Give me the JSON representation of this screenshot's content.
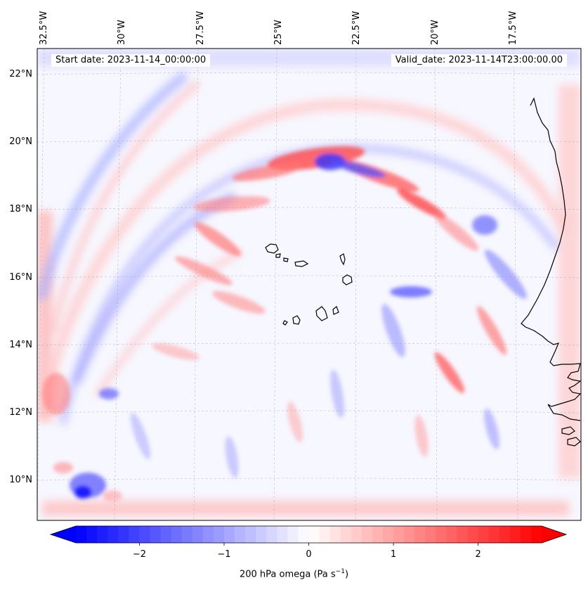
{
  "map": {
    "start_date": "Start date: 2023-11-14_00:00:00",
    "valid_date": "Valid_date: 2023-11-14T23:00:00.00",
    "lon_labels": [
      {
        "text": "32.5°W",
        "lon": -32.5
      },
      {
        "text": "30°W",
        "lon": -30
      },
      {
        "text": "27.5°W",
        "lon": -27.5
      },
      {
        "text": "25°W",
        "lon": -25
      },
      {
        "text": "22.5°W",
        "lon": -22.5
      },
      {
        "text": "20°W",
        "lon": -20
      },
      {
        "text": "17.5°W",
        "lon": -17.5
      }
    ],
    "lat_labels": [
      {
        "text": "22°N",
        "lat": 22
      },
      {
        "text": "20°N",
        "lat": 20
      },
      {
        "text": "18°N",
        "lat": 18
      },
      {
        "text": "16°N",
        "lat": 16
      },
      {
        "text": "14°N",
        "lat": 14
      },
      {
        "text": "12°N",
        "lat": 12
      },
      {
        "text": "10°N",
        "lat": 10
      }
    ],
    "colorbar": {
      "label": "200 hPa omega (Pa s",
      "label_exp": "−1",
      "label_end": ")",
      "range": [
        -2.75,
        2.75
      ],
      "ticks": [
        {
          "value": -2,
          "text": "−2"
        },
        {
          "value": -1,
          "text": "−1"
        },
        {
          "value": 0,
          "text": "0"
        },
        {
          "value": 1,
          "text": "1"
        },
        {
          "value": 2,
          "text": "2"
        }
      ],
      "color_low": "#0000ff",
      "color_mid": "#ffffff",
      "color_high": "#ff0000"
    }
  }
}
